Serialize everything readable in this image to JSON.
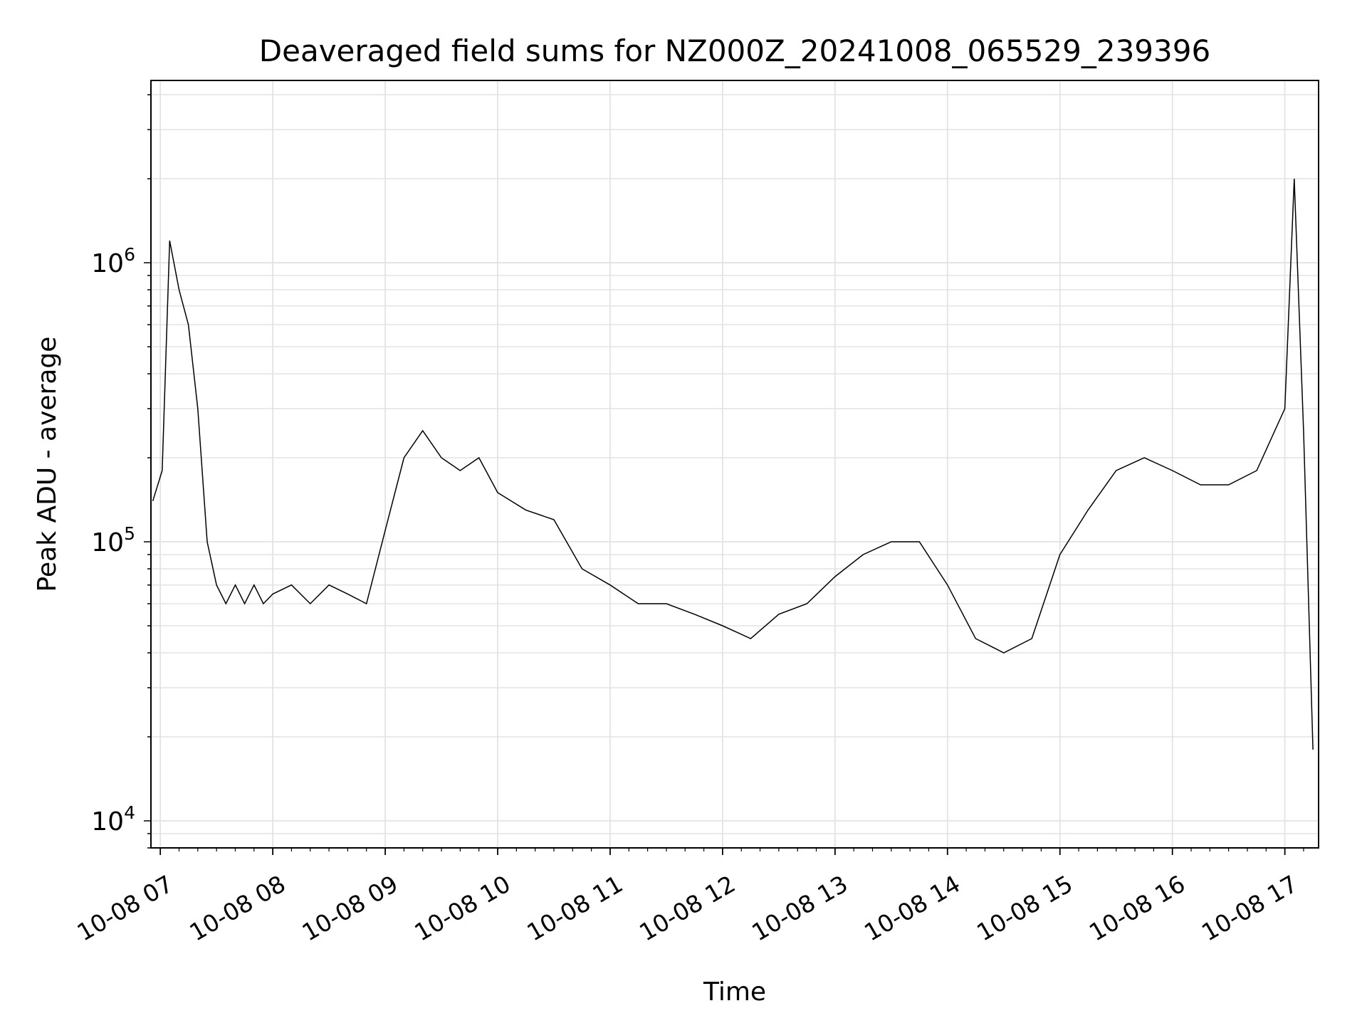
{
  "chart_data": {
    "type": "line",
    "title": "Deaveraged field sums for NZ000Z_20241008_065529_239396",
    "xlabel": "Time",
    "ylabel": "Peak ADU - average",
    "yscale": "log",
    "ylim": [
      8000,
      4500000
    ],
    "xlim": [
      "2024-10-08 06:55",
      "2024-10-08 17:18"
    ],
    "x_ticks": [
      "10-08 07",
      "10-08 08",
      "10-08 09",
      "10-08 10",
      "10-08 11",
      "10-08 12",
      "10-08 13",
      "10-08 14",
      "10-08 15",
      "10-08 16",
      "10-08 17"
    ],
    "y_ticks": [
      {
        "value": 10000,
        "base": "10",
        "exp": "4"
      },
      {
        "value": 100000,
        "base": "10",
        "exp": "5"
      },
      {
        "value": 1000000,
        "base": "10",
        "exp": "6"
      }
    ],
    "grid": true,
    "line_color": "#000000",
    "series": [
      {
        "x": [
          "2024-10-08 06:56",
          "2024-10-08 07:01",
          "2024-10-08 07:05",
          "2024-10-08 07:10",
          "2024-10-08 07:15",
          "2024-10-08 07:20",
          "2024-10-08 07:25",
          "2024-10-08 07:30",
          "2024-10-08 07:35",
          "2024-10-08 07:40",
          "2024-10-08 07:45",
          "2024-10-08 07:50",
          "2024-10-08 07:55",
          "2024-10-08 08:00",
          "2024-10-08 08:10",
          "2024-10-08 08:20",
          "2024-10-08 08:30",
          "2024-10-08 08:40",
          "2024-10-08 08:50",
          "2024-10-08 09:00",
          "2024-10-08 09:10",
          "2024-10-08 09:20",
          "2024-10-08 09:30",
          "2024-10-08 09:40",
          "2024-10-08 09:50",
          "2024-10-08 10:00",
          "2024-10-08 10:15",
          "2024-10-08 10:30",
          "2024-10-08 10:45",
          "2024-10-08 11:00",
          "2024-10-08 11:15",
          "2024-10-08 11:30",
          "2024-10-08 11:45",
          "2024-10-08 12:00",
          "2024-10-08 12:15",
          "2024-10-08 12:30",
          "2024-10-08 12:45",
          "2024-10-08 13:00",
          "2024-10-08 13:15",
          "2024-10-08 13:30",
          "2024-10-08 13:45",
          "2024-10-08 14:00",
          "2024-10-08 14:15",
          "2024-10-08 14:30",
          "2024-10-08 14:45",
          "2024-10-08 15:00",
          "2024-10-08 15:15",
          "2024-10-08 15:30",
          "2024-10-08 15:45",
          "2024-10-08 16:00",
          "2024-10-08 16:15",
          "2024-10-08 16:30",
          "2024-10-08 16:45",
          "2024-10-08 17:00",
          "2024-10-08 17:05",
          "2024-10-08 17:10",
          "2024-10-08 17:15"
        ],
        "y": [
          140000,
          180000,
          1200000,
          800000,
          600000,
          300000,
          100000,
          70000,
          60000,
          70000,
          60000,
          70000,
          60000,
          65000,
          70000,
          60000,
          70000,
          65000,
          60000,
          110000,
          200000,
          250000,
          200000,
          180000,
          200000,
          150000,
          130000,
          120000,
          80000,
          70000,
          60000,
          60000,
          55000,
          50000,
          45000,
          55000,
          60000,
          75000,
          90000,
          100000,
          100000,
          70000,
          45000,
          40000,
          45000,
          90000,
          130000,
          180000,
          200000,
          180000,
          160000,
          160000,
          180000,
          300000,
          2000000,
          250000,
          18000
        ]
      }
    ]
  }
}
